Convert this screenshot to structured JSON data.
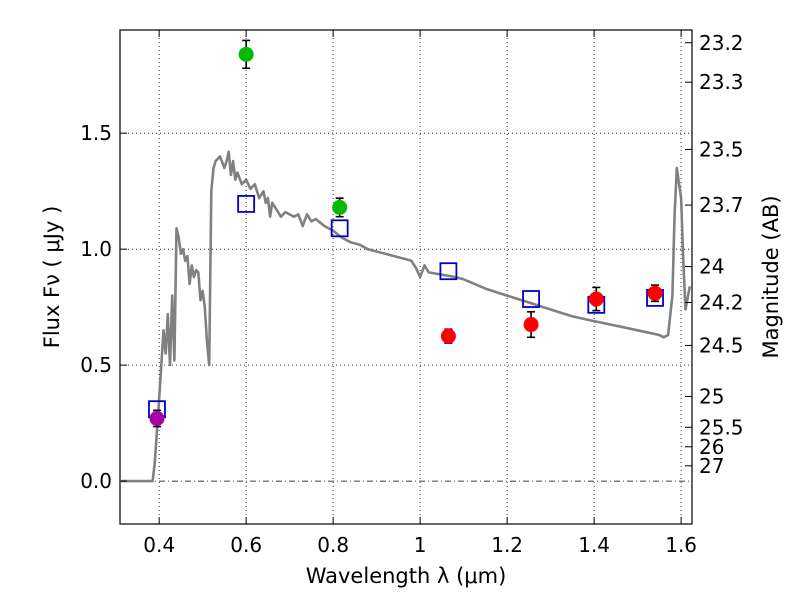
{
  "chart_data": {
    "type": "scatter",
    "title": "",
    "xlabel": "Wavelength  λ (μm)",
    "ylabel": "Flux  Fν  ( μJy )",
    "ylabel_right": "Magnitude (AB)",
    "xlim": [
      0.31,
      1.625
    ],
    "ylim": [
      -0.185,
      1.945
    ],
    "grid": true,
    "x_ticks": [
      {
        "value": 0.4,
        "label": "0.4"
      },
      {
        "value": 0.6,
        "label": "0.6"
      },
      {
        "value": 0.8,
        "label": "0.8"
      },
      {
        "value": 1.0,
        "label": "1"
      },
      {
        "value": 1.2,
        "label": "1.2"
      },
      {
        "value": 1.4,
        "label": "1.4"
      },
      {
        "value": 1.6,
        "label": "1.6"
      }
    ],
    "y_ticks": [
      {
        "value": 0.0,
        "label": "0.0"
      },
      {
        "value": 0.5,
        "label": "0.5"
      },
      {
        "value": 1.0,
        "label": "1.0"
      },
      {
        "value": 1.5,
        "label": "1.5"
      }
    ],
    "right_ticks": [
      {
        "label": "23.2",
        "flux": 1.89
      },
      {
        "label": "23.3",
        "flux": 1.72
      },
      {
        "label": "23.5",
        "flux": 1.43
      },
      {
        "label": "23.7",
        "flux": 1.19
      },
      {
        "label": "24",
        "flux": 0.925
      },
      {
        "label": "24.2",
        "flux": 0.77
      },
      {
        "label": "24.5",
        "flux": 0.585
      },
      {
        "label": "25",
        "flux": 0.365
      },
      {
        "label": "25.5",
        "flux": 0.232
      },
      {
        "label": "26",
        "flux": 0.148
      },
      {
        "label": "27",
        "flux": 0.066
      }
    ],
    "series": [
      {
        "name": "model_spectrum",
        "kind": "line",
        "color": "#808080",
        "x": [
          0.31,
          0.385,
          0.39,
          0.395,
          0.4,
          0.405,
          0.41,
          0.415,
          0.42,
          0.425,
          0.43,
          0.435,
          0.44,
          0.445,
          0.45,
          0.455,
          0.46,
          0.465,
          0.47,
          0.475,
          0.48,
          0.485,
          0.49,
          0.495,
          0.5,
          0.505,
          0.51,
          0.515,
          0.52,
          0.525,
          0.53,
          0.54,
          0.55,
          0.555,
          0.56,
          0.565,
          0.57,
          0.575,
          0.58,
          0.59,
          0.6,
          0.61,
          0.62,
          0.63,
          0.64,
          0.645,
          0.65,
          0.655,
          0.66,
          0.67,
          0.68,
          0.69,
          0.7,
          0.71,
          0.72,
          0.73,
          0.74,
          0.75,
          0.76,
          0.78,
          0.8,
          0.82,
          0.84,
          0.86,
          0.88,
          0.9,
          0.92,
          0.94,
          0.96,
          0.98,
          0.99,
          1.0,
          1.01,
          1.02,
          1.05,
          1.08,
          1.1,
          1.15,
          1.2,
          1.25,
          1.3,
          1.35,
          1.4,
          1.45,
          1.5,
          1.55,
          1.56,
          1.57,
          1.58,
          1.585,
          1.59,
          1.6,
          1.605,
          1.61,
          1.62
        ],
        "y": [
          0.0,
          0.0,
          0.08,
          0.22,
          0.35,
          0.5,
          0.65,
          0.55,
          0.72,
          0.5,
          0.8,
          0.52,
          1.09,
          1.05,
          0.98,
          1.0,
          0.95,
          0.97,
          0.85,
          0.93,
          0.88,
          0.91,
          0.9,
          0.78,
          0.82,
          0.75,
          0.6,
          0.5,
          1.25,
          1.35,
          1.38,
          1.4,
          1.35,
          1.38,
          1.42,
          1.32,
          1.38,
          1.3,
          1.33,
          1.28,
          1.3,
          1.26,
          1.28,
          1.22,
          1.25,
          1.2,
          1.22,
          1.14,
          1.2,
          1.17,
          1.14,
          1.16,
          1.15,
          1.14,
          1.15,
          1.1,
          1.15,
          1.12,
          1.13,
          1.1,
          1.08,
          1.05,
          1.03,
          1.02,
          1.0,
          0.99,
          0.98,
          0.97,
          0.96,
          0.95,
          0.92,
          0.88,
          0.93,
          0.9,
          0.89,
          0.88,
          0.87,
          0.83,
          0.8,
          0.77,
          0.74,
          0.71,
          0.69,
          0.67,
          0.65,
          0.63,
          0.62,
          0.63,
          0.8,
          1.15,
          1.35,
          1.22,
          0.95,
          0.74,
          0.84
        ]
      },
      {
        "name": "model_photometry",
        "kind": "open-square",
        "color": "#0000cc",
        "x": [
          0.395,
          0.6,
          0.815,
          1.065,
          1.255,
          1.405,
          1.54
        ],
        "y": [
          0.31,
          1.195,
          1.09,
          0.905,
          0.785,
          0.76,
          0.79
        ]
      },
      {
        "name": "observed_green",
        "kind": "point",
        "color": "#00bb00",
        "x": [
          0.6,
          0.815
        ],
        "y": [
          1.84,
          1.18
        ],
        "yerr": [
          0.06,
          0.04
        ]
      },
      {
        "name": "observed_red",
        "kind": "point",
        "color": "#ff0000",
        "x": [
          1.065,
          1.255,
          1.405,
          1.54
        ],
        "y": [
          0.625,
          0.675,
          0.785,
          0.81
        ],
        "yerr": [
          0.03,
          0.055,
          0.05,
          0.035
        ]
      },
      {
        "name": "observed_magenta",
        "kind": "point",
        "color": "#aa00aa",
        "x": [
          0.395
        ],
        "y": [
          0.27
        ],
        "yerr": [
          0.035
        ]
      }
    ]
  }
}
